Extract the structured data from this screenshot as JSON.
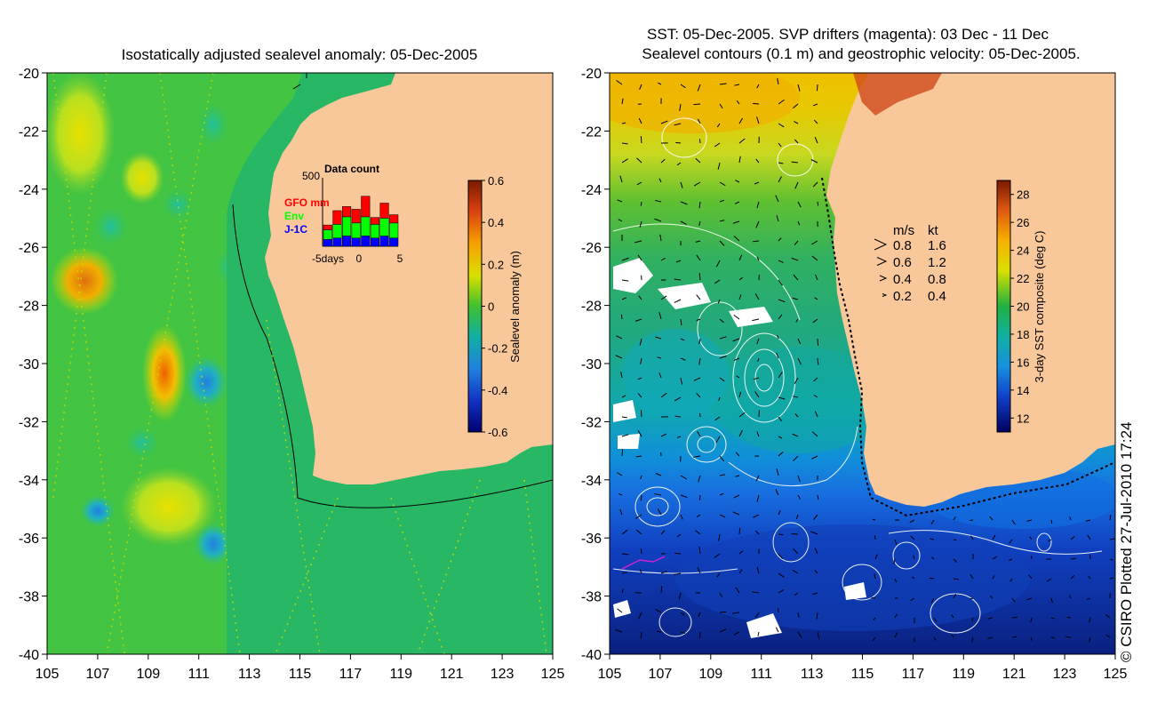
{
  "left_panel": {
    "title": "Isostatically adjusted sealevel anomaly: 05-Dec-2005",
    "colorbar": {
      "label": "Sealevel anomaly (m)",
      "ticks": [
        "0.6",
        "0.4",
        "0.2",
        "0",
        "-0.2",
        "-0.4",
        "-0.6"
      ]
    },
    "inset": {
      "title": "Data count",
      "ymax": "500",
      "series": [
        {
          "name": "GFO mm",
          "color": "#ff0000"
        },
        {
          "name": "Env",
          "color": "#00ff00"
        },
        {
          "name": "J-1C",
          "color": "#0000ff"
        }
      ],
      "xlabel_left": "-5days",
      "xlabel_mid": "0",
      "xlabel_right": "5",
      "bars": [
        {
          "jc": 0.1,
          "env": 0.14,
          "gfo": 0.07
        },
        {
          "jc": 0.12,
          "env": 0.2,
          "gfo": 0.2
        },
        {
          "jc": 0.15,
          "env": 0.28,
          "gfo": 0.15
        },
        {
          "jc": 0.12,
          "env": 0.22,
          "gfo": 0.2
        },
        {
          "jc": 0.15,
          "env": 0.28,
          "gfo": 0.3
        },
        {
          "jc": 0.12,
          "env": 0.2,
          "gfo": 0.1
        },
        {
          "jc": 0.15,
          "env": 0.26,
          "gfo": 0.22
        },
        {
          "jc": 0.12,
          "env": 0.22,
          "gfo": 0.12
        }
      ]
    }
  },
  "right_panel": {
    "title_line1": "SST: 05-Dec-2005. SVP drifters (magenta): 03 Dec - 11 Dec",
    "title_line2": "Sealevel contours (0.1 m) and geostrophic velocity: 05-Dec-2005.",
    "colorbar": {
      "label": "3-day SST composite (deg C)",
      "ticks": [
        "28",
        "26",
        "24",
        "22",
        "20",
        "18",
        "16",
        "14",
        "12"
      ]
    },
    "speed_legend": {
      "header_ms": "m/s",
      "header_kt": "kt",
      "rows": [
        {
          "ms": "0.8",
          "kt": "1.6"
        },
        {
          "ms": "0.6",
          "kt": "1.2"
        },
        {
          "ms": "0.4",
          "kt": "0.8"
        },
        {
          "ms": "0.2",
          "kt": "0.4"
        }
      ]
    }
  },
  "axes": {
    "y_ticks": [
      "-20",
      "-22",
      "-24",
      "-26",
      "-28",
      "-30",
      "-32",
      "-34",
      "-36",
      "-38",
      "-40"
    ],
    "x_ticks": [
      "105",
      "107",
      "109",
      "111",
      "113",
      "115",
      "117",
      "119",
      "121",
      "123",
      "125"
    ]
  },
  "credit": "© CSIRO Plotted 27-Jul-2010 17:24",
  "colors": {
    "land": "#f9c89a",
    "shelf": "#28b865",
    "ocean_sla": "#43c442"
  }
}
